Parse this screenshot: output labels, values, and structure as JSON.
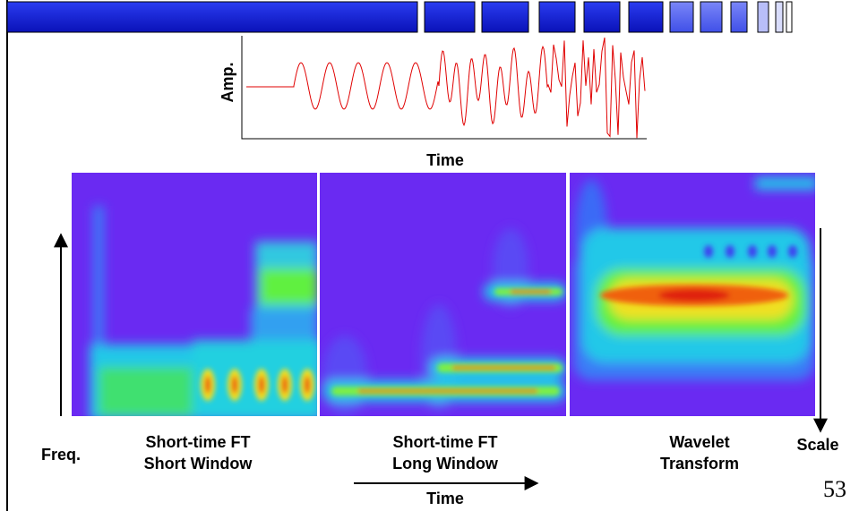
{
  "signal": {
    "y_label": "Amp.",
    "x_label": "Time"
  },
  "freq_label": "Freq.",
  "panels": [
    {
      "lines": [
        "Short-time FT",
        "Short Window"
      ]
    },
    {
      "lines": [
        "Short-time FT",
        "Long Window"
      ]
    },
    {
      "lines": [
        "Wavelet",
        "Transform"
      ]
    }
  ],
  "scale_label": "Scale",
  "time_label": "Time",
  "page_number": "53"
}
